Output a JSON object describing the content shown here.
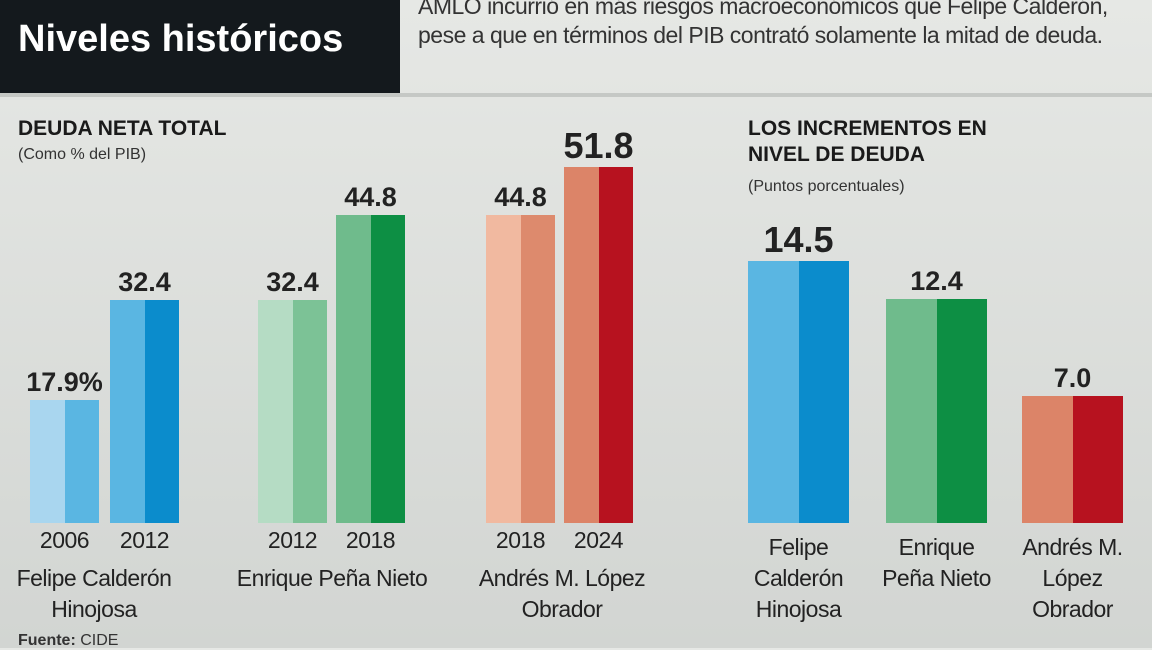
{
  "header": {
    "title": "Niveles históricos",
    "intro": "AMLO incurrió en más riesgos macroeconómicos que Felipe Calderón, pese a que en términos del PIB contrató solamente la mitad de deuda."
  },
  "source_label": "Fuente:",
  "source": "CIDE",
  "chart_data": [
    {
      "type": "bar",
      "title": "DEUDA NETA TOTAL",
      "subtitle": "(Como % del PIB)",
      "ylim": [
        0,
        55
      ],
      "groups": [
        {
          "name": "Felipe Calderón Hinojosa",
          "bars": [
            {
              "year": "2006",
              "value": 17.9,
              "label": "17.9%",
              "colors": [
                "#a9d6ef",
                "#5ab6e2"
              ]
            },
            {
              "year": "2012",
              "value": 32.4,
              "label": "32.4",
              "colors": [
                "#5ab6e2",
                "#0b8ccc"
              ]
            }
          ]
        },
        {
          "name": "Enrique Peña Nieto",
          "bars": [
            {
              "year": "2012",
              "value": 32.4,
              "label": "32.4",
              "colors": [
                "#b5dcc4",
                "#7cc296"
              ]
            },
            {
              "year": "2018",
              "value": 44.8,
              "label": "44.8",
              "colors": [
                "#6fbb8c",
                "#0d8f44"
              ]
            }
          ]
        },
        {
          "name": "Andrés M. López Obrador",
          "bars": [
            {
              "year": "2018",
              "value": 44.8,
              "label": "44.8",
              "colors": [
                "#f1b9a0",
                "#dd8a6d"
              ]
            },
            {
              "year": "2024",
              "value": 51.8,
              "label": "51.8",
              "colors": [
                "#dc8468",
                "#b7121f"
              ]
            }
          ]
        }
      ]
    },
    {
      "type": "bar",
      "title": "LOS INCREMENTOS EN NIVEL DE DEUDA",
      "subtitle": "(Puntos porcentuales)",
      "ylim": [
        0,
        20
      ],
      "categories": [
        "Felipe Calderón Hinojosa",
        "Enrique Peña Nieto",
        "Andrés M. López Obrador"
      ],
      "values": [
        14.5,
        12.4,
        7.0
      ],
      "labels": [
        "14.5",
        "12.4",
        "7.0"
      ],
      "colors": [
        [
          "#5ab6e2",
          "#0b8ccc"
        ],
        [
          "#6fbb8c",
          "#0d8f44"
        ],
        [
          "#dc8468",
          "#b7121f"
        ]
      ]
    }
  ]
}
